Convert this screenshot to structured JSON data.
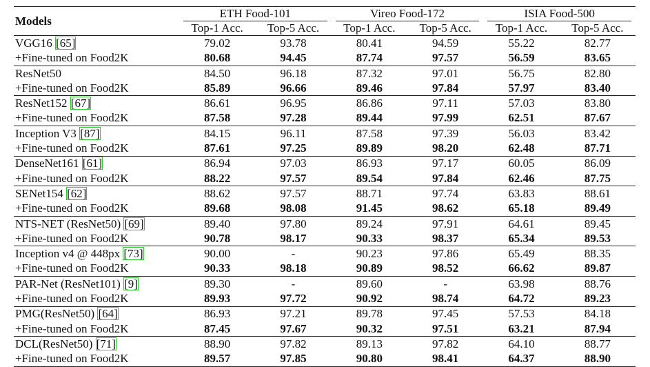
{
  "table": {
    "header": {
      "models": "Models",
      "groups": [
        "ETH Food-101",
        "Vireo Food-172",
        "ISIA Food-500"
      ],
      "metrics": [
        "Top-1 Acc.",
        "Top-5 Acc.",
        "Top-1 Acc.",
        "Top-5 Acc.",
        "Top-1 Acc.",
        "Top-5 Acc."
      ]
    },
    "rows": [
      {
        "model": "VGG16",
        "cite": "[65]",
        "values": [
          "79.02",
          "93.78",
          "80.41",
          "94.59",
          "55.22",
          "82.77"
        ],
        "bold": false
      },
      {
        "model": "+Fine-tuned on Food2K",
        "values": [
          "80.68",
          "94.45",
          "87.74",
          "97.57",
          "56.59",
          "83.65"
        ],
        "bold": true
      },
      {
        "model": "ResNet50",
        "values": [
          "84.50",
          "96.18",
          "87.32",
          "97.01",
          "56.75",
          "82.80"
        ],
        "bold": false
      },
      {
        "model": "+Fine-tuned on Food2K",
        "values": [
          "85.89",
          "96.66",
          "89.46",
          "97.84",
          "57.97",
          "83.40"
        ],
        "bold": true
      },
      {
        "model": "ResNet152",
        "cite": "[67]",
        "values": [
          "86.61",
          "96.95",
          "86.86",
          "97.11",
          "57.03",
          "83.80"
        ],
        "bold": false
      },
      {
        "model": "+Fine-tuned on Food2K",
        "values": [
          "87.58",
          "97.28",
          "89.44",
          "97.99",
          "62.51",
          "87.67"
        ],
        "bold": true
      },
      {
        "model": "Inception V3",
        "cite": "[87]",
        "values": [
          "84.15",
          "96.11",
          "87.58",
          "97.39",
          "56.03",
          "83.42"
        ],
        "bold": false
      },
      {
        "model": "+Fine-tuned on Food2K",
        "values": [
          "87.61",
          "97.25",
          "89.89",
          "98.20",
          "62.48",
          "87.71"
        ],
        "bold": true
      },
      {
        "model": "DenseNet161",
        "cite": "[61]",
        "values": [
          "86.94",
          "97.03",
          "86.93",
          "97.17",
          "60.05",
          "86.09"
        ],
        "bold": false
      },
      {
        "model": "+Fine-tuned on Food2K",
        "values": [
          "88.22",
          "97.57",
          "89.54",
          "97.84",
          "62.46",
          "87.75"
        ],
        "bold": true
      },
      {
        "model": "SENet154",
        "cite": "[62]",
        "values": [
          "88.62",
          "97.57",
          "88.71",
          "97.74",
          "63.83",
          "88.61"
        ],
        "bold": false
      },
      {
        "model": "+Fine-tuned on Food2K",
        "values": [
          "89.68",
          "98.08",
          "91.45",
          "98.62",
          "65.18",
          "89.49"
        ],
        "bold": true
      },
      {
        "model": "NTS-NET (ResNet50)",
        "cite": "[69]",
        "values": [
          "89.40",
          "97.80",
          "89.24",
          "97.91",
          "64.61",
          "89.45"
        ],
        "bold": false
      },
      {
        "model": "+Fine-tuned on Food2K",
        "values": [
          "90.78",
          "98.17",
          "90.33",
          "98.37",
          "65.34",
          "89.53"
        ],
        "bold": true
      },
      {
        "model": "Inception v4 @ 448px",
        "cite": "[73]",
        "values": [
          "90.00",
          "-",
          "90.23",
          "97.86",
          "65.49",
          "88.35"
        ],
        "bold": false
      },
      {
        "model": "+Fine-tuned on Food2K",
        "values": [
          "90.33",
          "98.18",
          "90.89",
          "98.52",
          "66.62",
          "89.87"
        ],
        "bold": true
      },
      {
        "model": "PAR-Net (ResNet101)",
        "cite": "[9]",
        "values": [
          "89.30",
          "-",
          "89.60",
          "-",
          "63.98",
          "88.76"
        ],
        "bold": false
      },
      {
        "model": "+Fine-tuned on Food2K",
        "values": [
          "89.93",
          "97.72",
          "90.92",
          "98.74",
          "64.72",
          "89.23"
        ],
        "bold": true
      },
      {
        "model": "PMG(ResNet50)",
        "cite": "[64]",
        "values": [
          "86.93",
          "97.21",
          "89.78",
          "97.45",
          "57.53",
          "84.18"
        ],
        "bold": false
      },
      {
        "model": "+Fine-tuned on Food2K",
        "values": [
          "87.45",
          "97.67",
          "90.32",
          "97.51",
          "63.21",
          "87.94"
        ],
        "bold": true
      },
      {
        "model": "DCL(ResNet50)",
        "cite": "[71]",
        "values": [
          "88.90",
          "97.82",
          "89.13",
          "97.82",
          "64.10",
          "88.77"
        ],
        "bold": false
      },
      {
        "model": "+Fine-tuned on Food2K",
        "values": [
          "89.57",
          "97.85",
          "90.80",
          "98.41",
          "64.37",
          "88.90"
        ],
        "bold": true
      }
    ]
  }
}
